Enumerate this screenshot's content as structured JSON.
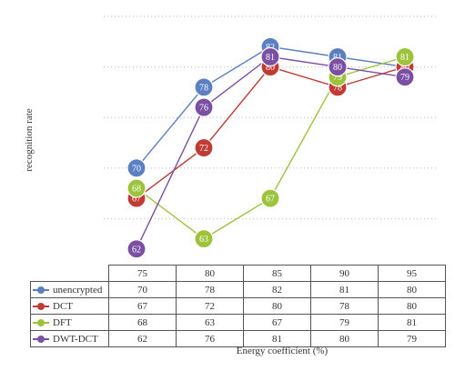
{
  "chart_data": {
    "type": "line",
    "categories": [
      "75",
      "80",
      "85",
      "90",
      "95"
    ],
    "series": [
      {
        "name": "unencrypted",
        "color": "#5a7fc3",
        "values": [
          70,
          78,
          82,
          81,
          80
        ]
      },
      {
        "name": "DCT",
        "color": "#c03b33",
        "values": [
          67,
          72,
          80,
          78,
          80
        ]
      },
      {
        "name": "DFT",
        "color": "#9dc33b",
        "values": [
          68,
          63,
          67,
          79,
          81
        ]
      },
      {
        "name": "DWT-DCT",
        "color": "#7b4fa3",
        "values": [
          62,
          76,
          81,
          80,
          79
        ]
      }
    ],
    "xlabel": "Energy coefficient (%)",
    "ylabel": "recognition rate",
    "ylim": [
      60,
      85
    ],
    "grid": true,
    "legend": "table"
  }
}
